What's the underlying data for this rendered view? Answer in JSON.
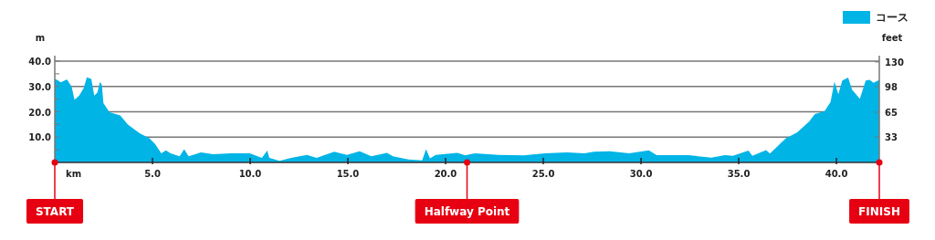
{
  "chart_data": {
    "type": "area",
    "xlabel": "km",
    "ylabel": "m",
    "y2label": "feet",
    "x": [
      0,
      0.16,
      0.31,
      0.62,
      0.86,
      1.01,
      1.25,
      1.48,
      1.64,
      1.87,
      2.02,
      2.18,
      2.31,
      2.41,
      2.49,
      2.8,
      3.35,
      3.74,
      4.36,
      4.83,
      5.14,
      5.45,
      5.69,
      5.92,
      6.39,
      6.62,
      6.85,
      7.48,
      8.1,
      9.03,
      9.97,
      10.6,
      10.87,
      10.98,
      11.5,
      12.1,
      12.9,
      13.4,
      14.3,
      14.95,
      15.6,
      16.2,
      17.0,
      17.3,
      18.1,
      18.8,
      19.0,
      19.2,
      19.5,
      20.6,
      21.0,
      21.5,
      22.7,
      24.0,
      25.1,
      26.2,
      27.1,
      27.6,
      28.4,
      29.4,
      30.4,
      30.8,
      32.4,
      33.6,
      34.3,
      34.7,
      35.5,
      35.7,
      36.4,
      36.6,
      37.4,
      38.0,
      38.6,
      38.9,
      39.4,
      39.7,
      39.9,
      40.1,
      40.3,
      40.6,
      40.8,
      41.2,
      41.5,
      41.7,
      41.9,
      42.195
    ],
    "series": [
      {
        "name": "コース",
        "color": "#00b4e6",
        "values": [
          33,
          32.4,
          31.6,
          32.8,
          30,
          24.8,
          26.4,
          29.4,
          33.6,
          33,
          26.4,
          27.6,
          31.8,
          30.6,
          23.4,
          19.8,
          18.6,
          15,
          11.4,
          9.6,
          7.2,
          3.6,
          4.8,
          3.6,
          2.4,
          5.2,
          2.4,
          4,
          3.2,
          3.6,
          3.6,
          1.8,
          4.7,
          1.8,
          0.6,
          1.8,
          3,
          1.8,
          4.2,
          3,
          4.4,
          2.4,
          3.8,
          2.4,
          1.2,
          0.8,
          5.2,
          1.6,
          3,
          3.8,
          2.8,
          3.6,
          3,
          2.8,
          3.6,
          4,
          3.6,
          4.2,
          4.4,
          3.6,
          4.8,
          2.9,
          2.9,
          1.9,
          2.9,
          2.6,
          4.7,
          2.6,
          4.9,
          3.5,
          9.5,
          11.9,
          16.1,
          19.1,
          20.3,
          23.9,
          31.9,
          26.9,
          32.3,
          33.5,
          28.7,
          25.1,
          32.3,
          32.6,
          31.4,
          32.6
        ]
      }
    ],
    "xlim": [
      0,
      42.195
    ],
    "xticks": [
      {
        "value": 5,
        "label": "5.0"
      },
      {
        "value": 10,
        "label": "10.0"
      },
      {
        "value": 15,
        "label": "15.0"
      },
      {
        "value": 20,
        "label": "20.0"
      },
      {
        "value": 25,
        "label": "25.0"
      },
      {
        "value": 30,
        "label": "30.0"
      },
      {
        "value": 35,
        "label": "35.0"
      },
      {
        "value": 40,
        "label": "40.0"
      }
    ],
    "ylim": [
      0,
      40
    ],
    "yticks": [
      {
        "value": 5,
        "label": null
      },
      {
        "value": 10,
        "label": "10.0"
      },
      {
        "value": 15,
        "label": null
      },
      {
        "value": 20,
        "label": "20.0"
      },
      {
        "value": 25,
        "label": null
      },
      {
        "value": 30,
        "label": "30.0"
      },
      {
        "value": 35,
        "label": null
      },
      {
        "value": 40,
        "label": "40.0"
      }
    ],
    "y2lim": [
      0,
      131
    ],
    "y2ticks": [
      33,
      65,
      98,
      130
    ],
    "annotations": [
      {
        "text": "START",
        "x": 0,
        "y": 0
      },
      {
        "text": "Halfway Point",
        "x": 21.0975,
        "y": 0
      },
      {
        "text": "FINISH",
        "x": 42.195,
        "y": 0
      }
    ],
    "grid": "y",
    "legend": "top right"
  }
}
